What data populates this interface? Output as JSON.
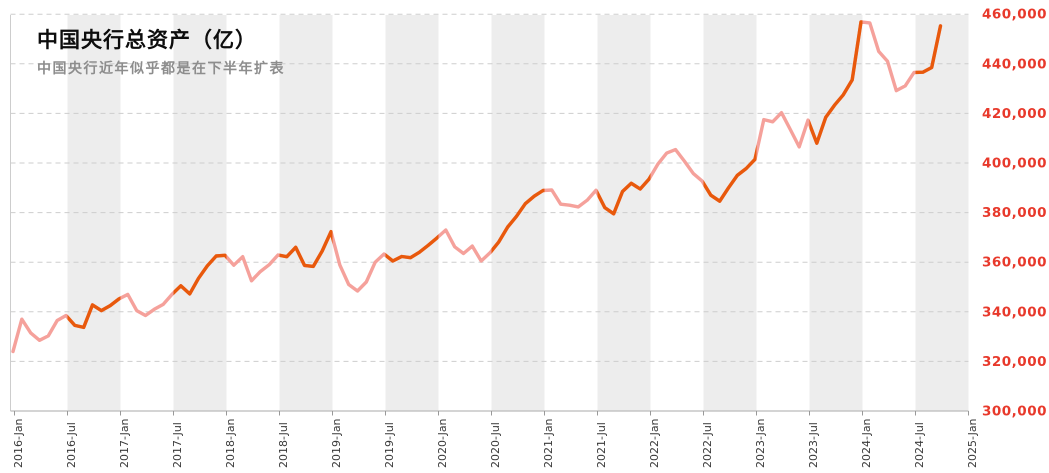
{
  "title": "中国央行总资产（亿）",
  "subtitle": "中国央行近年似乎都是在下半年扩表",
  "colors": {
    "h1_line": "#F5A19B",
    "h2_line": "#E8590C",
    "band": "#EDEDED",
    "grid": "#CDCDCD",
    "axis_spine": "#BBBBBB",
    "tick_mark": "#999999",
    "y_label": "#E8392B",
    "x_label": "#3A3A3A",
    "title": "#0D0D0D",
    "subtitle": "#8D8D8D",
    "background": "#FFFFFF"
  },
  "chart_data": {
    "type": "line",
    "title": "中国央行总资产（亿）",
    "subtitle": "中国央行近年似乎都是在下半年扩表",
    "unit": "亿元",
    "grid": "horizontal-dashed",
    "legend": "none",
    "shading_note": "second-half-of-year bands (Jul-Jan) shaded gray; line orange in H2, pink in H1",
    "ylim": [
      300000,
      460000
    ],
    "y_step": 20000,
    "y_tick_labels": [
      "300,000",
      "320,000",
      "340,000",
      "360,000",
      "380,000",
      "400,000",
      "420,000",
      "440,000",
      "460,000"
    ],
    "x_tick_labels": [
      "2016-Jan",
      "2016-Jul",
      "2017-Jan",
      "2017-Jul",
      "2018-Jan",
      "2018-Jul",
      "2019-Jan",
      "2019-Jul",
      "2020-Jan",
      "2020-Jul",
      "2021-Jan",
      "2021-Jul",
      "2022-Jan",
      "2022-Jul",
      "2023-Jan",
      "2023-Jul",
      "2024-Jan",
      "2024-Jul",
      "2025-Jan"
    ],
    "line_colors": {
      "first_half": "#F5A19B",
      "second_half": "#E8590C"
    },
    "months": [
      "2015-12",
      "2016-01",
      "2016-02",
      "2016-03",
      "2016-04",
      "2016-05",
      "2016-06",
      "2016-07",
      "2016-08",
      "2016-09",
      "2016-10",
      "2016-11",
      "2016-12",
      "2017-01",
      "2017-02",
      "2017-03",
      "2017-04",
      "2017-05",
      "2017-06",
      "2017-07",
      "2017-08",
      "2017-09",
      "2017-10",
      "2017-11",
      "2017-12",
      "2018-01",
      "2018-02",
      "2018-03",
      "2018-04",
      "2018-05",
      "2018-06",
      "2018-07",
      "2018-08",
      "2018-09",
      "2018-10",
      "2018-11",
      "2018-12",
      "2019-01",
      "2019-02",
      "2019-03",
      "2019-04",
      "2019-05",
      "2019-06",
      "2019-07",
      "2019-08",
      "2019-09",
      "2019-10",
      "2019-11",
      "2019-12",
      "2020-01",
      "2020-02",
      "2020-03",
      "2020-04",
      "2020-05",
      "2020-06",
      "2020-07",
      "2020-08",
      "2020-09",
      "2020-10",
      "2020-11",
      "2020-12",
      "2021-01",
      "2021-02",
      "2021-03",
      "2021-04",
      "2021-05",
      "2021-06",
      "2021-07",
      "2021-08",
      "2021-09",
      "2021-10",
      "2021-11",
      "2021-12",
      "2022-01",
      "2022-02",
      "2022-03",
      "2022-04",
      "2022-05",
      "2022-06",
      "2022-07",
      "2022-08",
      "2022-09",
      "2022-10",
      "2022-11",
      "2022-12",
      "2023-01",
      "2023-02",
      "2023-03",
      "2023-04",
      "2023-05",
      "2023-06",
      "2023-07",
      "2023-08",
      "2023-09",
      "2023-10",
      "2023-11",
      "2023-12",
      "2024-01",
      "2024-02",
      "2024-03",
      "2024-04",
      "2024-05",
      "2024-06",
      "2024-07",
      "2024-08",
      "2024-09"
    ],
    "values": [
      324000,
      337000,
      331500,
      328500,
      330300,
      336500,
      338500,
      334500,
      333700,
      342800,
      340500,
      342500,
      345200,
      347000,
      340500,
      338500,
      341000,
      343000,
      347000,
      350500,
      347200,
      353500,
      358500,
      362500,
      362800,
      358800,
      362200,
      352500,
      356200,
      359000,
      362900,
      362200,
      366000,
      358700,
      358300,
      364500,
      372300,
      358900,
      351000,
      348400,
      352000,
      360000,
      363300,
      360500,
      362300,
      361800,
      364000,
      366800,
      369800,
      373000,
      366200,
      363500,
      366500,
      360500,
      363800,
      368200,
      374200,
      378500,
      383600,
      386600,
      388900,
      389100,
      383400,
      383000,
      382300,
      385000,
      389000,
      382000,
      379500,
      388500,
      391800,
      389500,
      393500,
      399500,
      404000,
      405400,
      400800,
      395800,
      392800,
      387000,
      384600,
      390000,
      395000,
      397800,
      401500,
      417500,
      416600,
      420300,
      413500,
      406500,
      417300,
      408000,
      418400,
      423300,
      427500,
      433500,
      456900,
      456500,
      445000,
      441000,
      429200,
      431100,
      436500,
      436600,
      438500,
      455300
    ]
  }
}
